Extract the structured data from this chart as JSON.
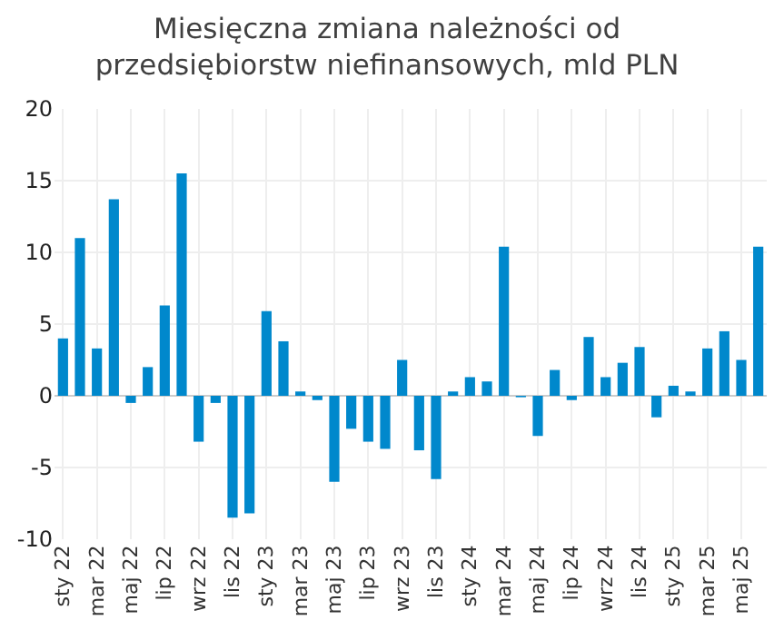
{
  "chart_data": {
    "type": "bar",
    "title": "Miesięczna zmiana należności od\nprzedsiębiorstw niefinansowych, mld PLN",
    "categories": [
      "sty 22",
      null,
      "mar 22",
      null,
      "maj 22",
      null,
      "lip 22",
      null,
      "wrz 22",
      null,
      "lis 22",
      null,
      "sty 23",
      null,
      "mar 23",
      null,
      "maj 23",
      null,
      "lip 23",
      null,
      "wrz 23",
      null,
      "lis 23",
      null,
      "sty 24",
      null,
      "mar 24",
      null,
      "maj 24",
      null,
      "lip 24",
      null,
      "wrz 24",
      null,
      "lis 24",
      null,
      "sty 25",
      null,
      "mar 25",
      null,
      "maj 25",
      null
    ],
    "values": [
      4.0,
      11.0,
      3.3,
      13.7,
      -0.5,
      2.0,
      6.3,
      15.5,
      -3.2,
      -0.5,
      -8.5,
      -8.2,
      5.9,
      3.8,
      0.3,
      -0.3,
      -6.0,
      -2.3,
      -3.2,
      -3.7,
      2.5,
      -3.8,
      -5.8,
      0.3,
      1.3,
      1.0,
      10.4,
      -0.1,
      -2.8,
      1.8,
      -0.3,
      4.1,
      1.3,
      2.3,
      3.4,
      -1.5,
      0.7,
      0.3,
      3.3,
      4.5,
      2.5,
      10.4
    ],
    "color": "#0088cc",
    "ylim": [
      -10,
      20
    ],
    "yticks": [
      -10,
      -5,
      0,
      5,
      10,
      15,
      20
    ],
    "grid": true
  }
}
